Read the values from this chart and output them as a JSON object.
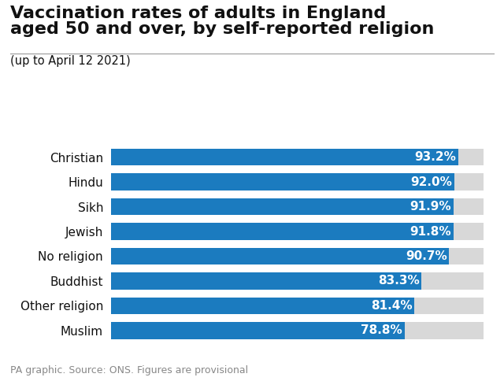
{
  "title_line1": "Vaccination rates of adults in England",
  "title_line2": "aged 50 and over, by self-reported religion",
  "subtitle": "(up to April 12 2021)",
  "footer": "PA graphic. Source: ONS. Figures are provisional",
  "categories": [
    "Christian",
    "Hindu",
    "Sikh",
    "Jewish",
    "No religion",
    "Buddhist",
    "Other religion",
    "Muslim"
  ],
  "values": [
    93.2,
    92.0,
    91.9,
    91.8,
    90.7,
    83.3,
    81.4,
    78.8
  ],
  "labels": [
    "93.2%",
    "92.0%",
    "91.9%",
    "91.8%",
    "90.7%",
    "83.3%",
    "81.4%",
    "78.8%"
  ],
  "bar_color": "#1b7bbf",
  "bg_color": "#d8d8d8",
  "fig_bg_color": "#ffffff",
  "text_color_white": "#ffffff",
  "text_color_dark": "#111111",
  "footer_color": "#888888",
  "title_fontsize": 16,
  "subtitle_fontsize": 10.5,
  "category_fontsize": 11,
  "bar_label_fontsize": 11,
  "footer_fontsize": 9,
  "bar_height": 0.68
}
